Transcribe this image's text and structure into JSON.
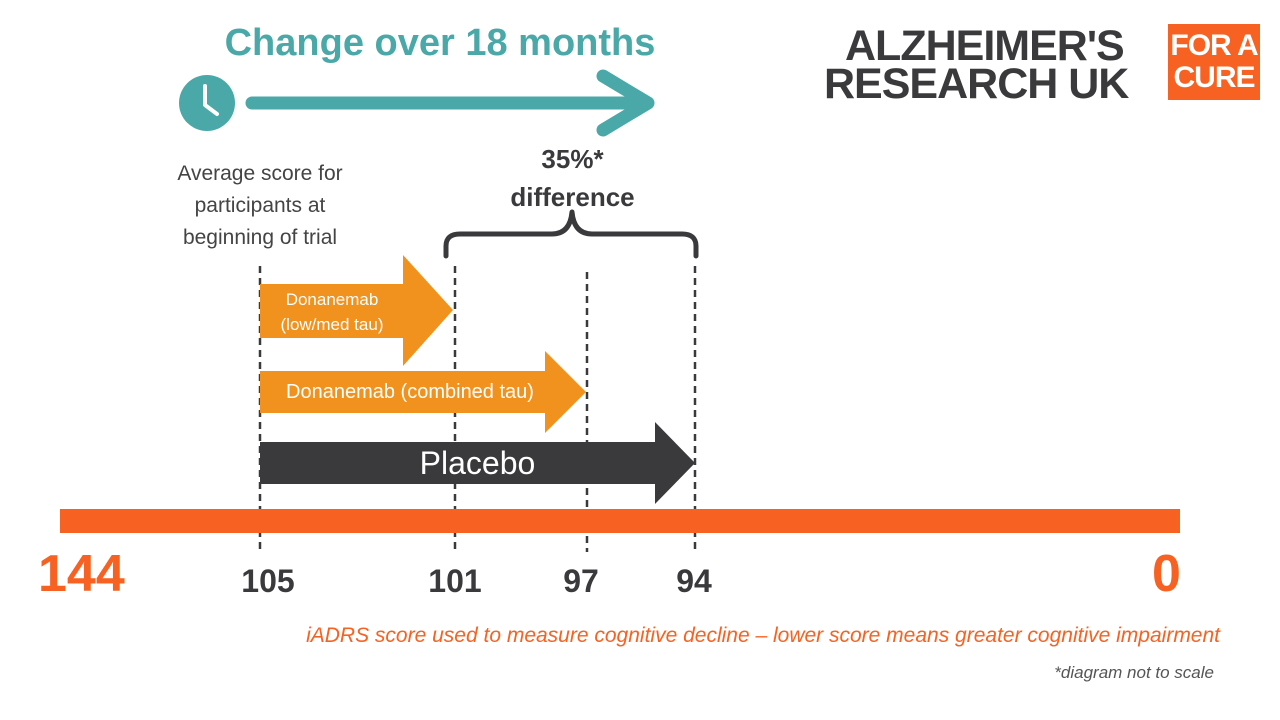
{
  "title": "Change over 18 months",
  "logo": {
    "line1": "ALZHEIMER'S",
    "line2": "RESEARCH UK",
    "badge_line1": "FOR A",
    "badge_line2": "CURE"
  },
  "begin_label": {
    "line1": "Average score for",
    "line2": "participants at",
    "line3": "beginning of trial"
  },
  "difference_label": {
    "line1": "35%*",
    "line2": "difference"
  },
  "arrows": [
    {
      "line1": "Donanemab",
      "line2": "(low/med tau)",
      "start": 105,
      "end": 101
    },
    {
      "line1": "Donanemab (combined tau)",
      "start": 105,
      "end": 97
    },
    {
      "line1": "Placebo",
      "start": 105,
      "end": 94
    }
  ],
  "scale": {
    "left_end": "144",
    "right_end": "0",
    "ticks": [
      "105",
      "101",
      "97",
      "94"
    ]
  },
  "caption": "iADRS score used to measure cognitive decline – lower score means greater cognitive impairment",
  "note": "*diagram not to scale",
  "colors": {
    "teal": "#4aa9a8",
    "orange": "#f0921d",
    "scale_orange": "#f76222",
    "dark": "#3a3a3c",
    "badge": "#f76222"
  },
  "icons": [
    "clock-icon"
  ]
}
